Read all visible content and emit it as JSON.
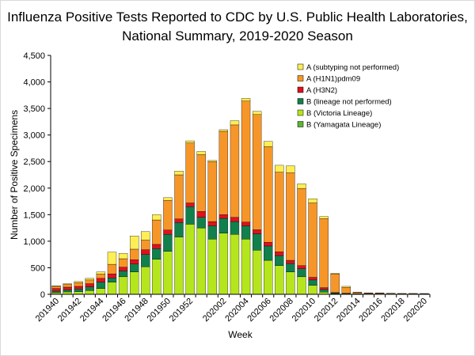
{
  "chart_data": {
    "type": "bar",
    "stacked": true,
    "title_line1": "Influenza Positive Tests Reported to CDC by U.S. Public Health Laboratories,",
    "title_line2": "National Summary,  2019-2020 Season",
    "xlabel": "Week",
    "ylabel": "Number of Positive Specimens",
    "ylim": [
      0,
      4500
    ],
    "yticks": [
      0,
      500,
      1000,
      1500,
      2000,
      2500,
      3000,
      3500,
      4000,
      4500
    ],
    "ytick_labels": [
      "0",
      "500",
      "1,000",
      "1,500",
      "2,000",
      "2,500",
      "3,000",
      "3,500",
      "4,000",
      "4,500"
    ],
    "categories": [
      "201940",
      "201941",
      "201942",
      "201943",
      "201944",
      "201945",
      "201946",
      "201947",
      "201948",
      "201949",
      "201950",
      "201951",
      "201952",
      "201953",
      "202001",
      "202002",
      "202003",
      "202004",
      "202005",
      "202006",
      "202007",
      "202008",
      "202009",
      "202010",
      "202011",
      "202012",
      "202013",
      "202014",
      "202015",
      "202016",
      "202017",
      "202018",
      "202019",
      "202020"
    ],
    "xtick_labels": [
      "201940",
      "201942",
      "201944",
      "201946",
      "201948",
      "201950",
      "201952",
      "202002",
      "202004",
      "202006",
      "202008",
      "202010",
      "202012",
      "202014",
      "202016",
      "202018",
      "202020"
    ],
    "legend_position": "top-right",
    "series": [
      {
        "name": "B (Yamagata Lineage)",
        "color": "#5cb531",
        "values": [
          0,
          0,
          0,
          0,
          0,
          0,
          0,
          0,
          0,
          0,
          0,
          0,
          0,
          0,
          0,
          0,
          0,
          0,
          0,
          0,
          0,
          0,
          0,
          0,
          0,
          0,
          0,
          0,
          0,
          0,
          0,
          0,
          0,
          0
        ]
      },
      {
        "name": "B (Victoria Lineage)",
        "color": "#b5e61d",
        "values": [
          30,
          45,
          50,
          70,
          110,
          230,
          330,
          420,
          520,
          660,
          810,
          1080,
          1320,
          1250,
          1040,
          1150,
          1130,
          1040,
          830,
          640,
          540,
          420,
          330,
          170,
          40,
          10,
          5,
          3,
          2,
          2,
          1,
          1,
          1,
          0
        ]
      },
      {
        "name": "B (lineage not performed)",
        "color": "#11804d",
        "values": [
          30,
          40,
          50,
          70,
          120,
          80,
          110,
          150,
          230,
          200,
          320,
          270,
          330,
          200,
          250,
          280,
          240,
          250,
          310,
          270,
          190,
          160,
          150,
          100,
          50,
          15,
          10,
          5,
          3,
          3,
          2,
          2,
          2,
          2
        ]
      },
      {
        "name": "A (H3N2)",
        "color": "#e0101e",
        "values": [
          50,
          50,
          50,
          60,
          70,
          75,
          70,
          80,
          90,
          80,
          80,
          70,
          70,
          110,
          80,
          70,
          80,
          70,
          75,
          70,
          70,
          60,
          60,
          50,
          35,
          10,
          5,
          2,
          2,
          2,
          1,
          1,
          1,
          1
        ]
      },
      {
        "name": "A (H1N1)pdm09",
        "color": "#f79628",
        "values": [
          40,
          50,
          70,
          70,
          80,
          180,
          160,
          200,
          180,
          460,
          560,
          830,
          1130,
          1070,
          1130,
          1570,
          1740,
          2280,
          2170,
          1800,
          1500,
          1650,
          1450,
          1400,
          1300,
          350,
          110,
          25,
          15,
          15,
          12,
          10,
          10,
          10
        ]
      },
      {
        "name": "A (subtyping not performed)",
        "color": "#ffee55",
        "values": [
          10,
          15,
          20,
          30,
          40,
          230,
          100,
          250,
          160,
          100,
          50,
          70,
          40,
          60,
          20,
          30,
          80,
          50,
          60,
          100,
          130,
          130,
          90,
          80,
          40,
          10,
          20,
          5,
          4,
          4,
          3,
          2,
          2,
          2
        ]
      }
    ]
  }
}
